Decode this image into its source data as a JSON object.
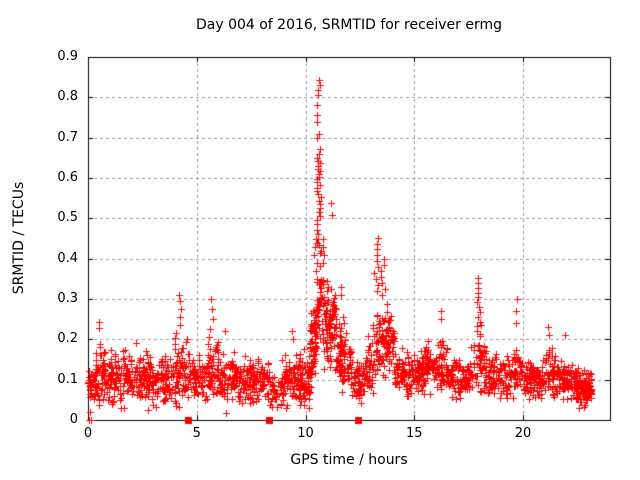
{
  "chart_data": {
    "type": "scatter",
    "title": "Day 004 of 2016, SRMTID for receiver ermg",
    "xlabel": "GPS time / hours",
    "ylabel": "SRMTID / TECUs",
    "xlim": [
      0,
      24
    ],
    "ylim": [
      0,
      0.9
    ],
    "xticks": [
      0,
      5,
      10,
      15,
      20
    ],
    "xtick_labels": [
      "0",
      "5",
      "10",
      "15",
      "20"
    ],
    "yticks": [
      0,
      0.1,
      0.2,
      0.3,
      0.4,
      0.5,
      0.6,
      0.7,
      0.8,
      0.9
    ],
    "ytick_labels": [
      "0",
      "0.1",
      "0.2",
      "0.3",
      "0.4",
      "0.5",
      "0.6",
      "0.7",
      "0.8",
      "0.9"
    ],
    "grid": "dashed",
    "legend": "none",
    "series_name": "SRMTID",
    "marker": "plus",
    "marker_color": "#ff0000",
    "grid_color": "#9b9b9b",
    "border_color": "#000000",
    "text_color": "#000000",
    "background_color": "#ffffff",
    "seed": 7,
    "noise_bands": [
      {
        "x0": 0.0,
        "x1": 0.6,
        "n": 55,
        "mu": 0.08,
        "spread": 0.07
      },
      {
        "x0": 0.3,
        "x1": 0.8,
        "n": 18,
        "mu": 0.15,
        "spread": 0.09
      },
      {
        "x0": 0.6,
        "x1": 4.45,
        "n": 320,
        "mu": 0.1,
        "spread": 0.09
      },
      {
        "x0": 4.0,
        "x1": 4.45,
        "n": 25,
        "mu": 0.15,
        "spread": 0.12
      },
      {
        "x0": 4.45,
        "x1": 4.85,
        "n": 30,
        "mu": 0.12,
        "spread": 0.1
      },
      {
        "x0": 4.85,
        "x1": 5.5,
        "n": 55,
        "mu": 0.1,
        "spread": 0.08
      },
      {
        "x0": 5.5,
        "x1": 6.1,
        "n": 60,
        "mu": 0.12,
        "spread": 0.1
      },
      {
        "x0": 6.1,
        "x1": 8.4,
        "n": 195,
        "mu": 0.1,
        "spread": 0.09
      },
      {
        "x0": 8.4,
        "x1": 8.9,
        "n": 26,
        "mu": 0.07,
        "spread": 0.06
      },
      {
        "x0": 8.9,
        "x1": 10.2,
        "n": 140,
        "mu": 0.1,
        "spread": 0.09
      },
      {
        "x0": 10.2,
        "x1": 10.5,
        "n": 55,
        "mu": 0.19,
        "spread": 0.13
      },
      {
        "x0": 10.5,
        "x1": 10.8,
        "n": 40,
        "mu": 0.3,
        "spread": 0.16
      },
      {
        "x0": 10.8,
        "x1": 11.4,
        "n": 90,
        "mu": 0.24,
        "spread": 0.15
      },
      {
        "x0": 11.4,
        "x1": 12.1,
        "n": 85,
        "mu": 0.16,
        "spread": 0.11
      },
      {
        "x0": 12.1,
        "x1": 12.7,
        "n": 50,
        "mu": 0.1,
        "spread": 0.07
      },
      {
        "x0": 12.7,
        "x1": 13.1,
        "n": 40,
        "mu": 0.13,
        "spread": 0.09
      },
      {
        "x0": 13.1,
        "x1": 14.1,
        "n": 105,
        "mu": 0.19,
        "spread": 0.13
      },
      {
        "x0": 14.1,
        "x1": 15.3,
        "n": 110,
        "mu": 0.12,
        "spread": 0.08
      },
      {
        "x0": 15.3,
        "x1": 16.6,
        "n": 120,
        "mu": 0.13,
        "spread": 0.09
      },
      {
        "x0": 16.6,
        "x1": 17.6,
        "n": 90,
        "mu": 0.1,
        "spread": 0.07
      },
      {
        "x0": 17.6,
        "x1": 18.3,
        "n": 55,
        "mu": 0.14,
        "spread": 0.11
      },
      {
        "x0": 18.3,
        "x1": 19.5,
        "n": 100,
        "mu": 0.11,
        "spread": 0.08
      },
      {
        "x0": 19.5,
        "x1": 20.0,
        "n": 38,
        "mu": 0.12,
        "spread": 0.09
      },
      {
        "x0": 20.0,
        "x1": 21.0,
        "n": 90,
        "mu": 0.1,
        "spread": 0.07
      },
      {
        "x0": 21.0,
        "x1": 21.5,
        "n": 45,
        "mu": 0.12,
        "spread": 0.09
      },
      {
        "x0": 21.5,
        "x1": 22.4,
        "n": 85,
        "mu": 0.1,
        "spread": 0.07
      },
      {
        "x0": 22.4,
        "x1": 23.15,
        "n": 120,
        "mu": 0.08,
        "spread": 0.06
      }
    ],
    "spike_columns": [
      {
        "x": 10.6,
        "jitter": 0.1,
        "ys": [
          0.843,
          0.83,
          0.818,
          0.806,
          0.781,
          0.756,
          0.74,
          0.709,
          0.7,
          0.672,
          0.66,
          0.65,
          0.643,
          0.636,
          0.63,
          0.623,
          0.617,
          0.61,
          0.603,
          0.597,
          0.59,
          0.583,
          0.576,
          0.568,
          0.56,
          0.552,
          0.544,
          0.535,
          0.525,
          0.515,
          0.505,
          0.495,
          0.485,
          0.472,
          0.46,
          0.448,
          0.435,
          0.42
        ]
      },
      {
        "x": 10.45,
        "jitter": 0.08,
        "ys": [
          0.45,
          0.43,
          0.41,
          0.39,
          0.37,
          0.35
        ]
      },
      {
        "x": 10.85,
        "jitter": 0.08,
        "ys": [
          0.45,
          0.43,
          0.41,
          0.39
        ]
      },
      {
        "x": 11.2,
        "jitter": 0.06,
        "ys": [
          0.538,
          0.508
        ]
      },
      {
        "x": 11.6,
        "jitter": 0.08,
        "ys": [
          0.33,
          0.31
        ]
      },
      {
        "x": 13.25,
        "jitter": 0.1,
        "ys": [
          0.451,
          0.437,
          0.423,
          0.408,
          0.394,
          0.38,
          0.365,
          0.35,
          0.335,
          0.32
        ]
      },
      {
        "x": 13.55,
        "jitter": 0.1,
        "ys": [
          0.4,
          0.385,
          0.37,
          0.355,
          0.34,
          0.325,
          0.31
        ]
      },
      {
        "x": 16.2,
        "jitter": 0.08,
        "ys": [
          0.27,
          0.25
        ]
      },
      {
        "x": 17.95,
        "jitter": 0.1,
        "ys": [
          0.352,
          0.34,
          0.328,
          0.316,
          0.304,
          0.292,
          0.28,
          0.268,
          0.256,
          0.244,
          0.232,
          0.22
        ]
      },
      {
        "x": 19.7,
        "jitter": 0.06,
        "ys": [
          0.3,
          0.27,
          0.24
        ]
      },
      {
        "x": 21.2,
        "jitter": 0.06,
        "ys": [
          0.23,
          0.21
        ]
      },
      {
        "x": 22.0,
        "jitter": 0.06,
        "ys": [
          0.21
        ]
      },
      {
        "x": 4.2,
        "jitter": 0.08,
        "ys": [
          0.31,
          0.295,
          0.275,
          0.255,
          0.235
        ]
      },
      {
        "x": 5.7,
        "jitter": 0.1,
        "ys": [
          0.3,
          0.275,
          0.25,
          0.225
        ]
      },
      {
        "x": 6.3,
        "jitter": 0.05,
        "ys": [
          0.22
        ]
      },
      {
        "x": 9.4,
        "jitter": 0.06,
        "ys": [
          0.22,
          0.2
        ]
      },
      {
        "x": 0.52,
        "jitter": 0.05,
        "ys": [
          0.243,
          0.228
        ]
      },
      {
        "x": 2.2,
        "jitter": 0.06,
        "ys": [
          0.19
        ]
      }
    ],
    "zero_squares": [
      4.6,
      8.3,
      12.4
    ],
    "zero_plusses": [
      0.05,
      0.13
    ]
  }
}
